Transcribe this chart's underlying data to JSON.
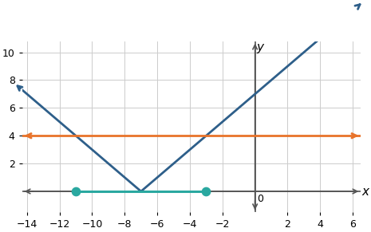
{
  "x_min": -14,
  "x_max": 6,
  "y_min": -1,
  "y_max": 10,
  "x_ticks": [
    -14,
    -12,
    -10,
    -8,
    -6,
    -4,
    -2,
    2,
    4,
    6
  ],
  "y_ticks": [
    2,
    4,
    6,
    8,
    10
  ],
  "abs_vertex_x": -7,
  "horizontal_line_y": 4,
  "solution_x1": -11,
  "solution_x2": -3,
  "abs_color": "#2E5F8A",
  "horiz_color": "#E8732A",
  "segment_color": "#2AA8A0",
  "dot_color": "#2AA8A0",
  "background_color": "#ffffff",
  "grid_color": "#cccccc",
  "axis_color": "#555555",
  "dot_size": 55,
  "abs_lw": 2.0,
  "horiz_lw": 2.0,
  "seg_lw": 2.2,
  "xlabel": "x",
  "ylabel": "y",
  "tick_fontsize": 9
}
